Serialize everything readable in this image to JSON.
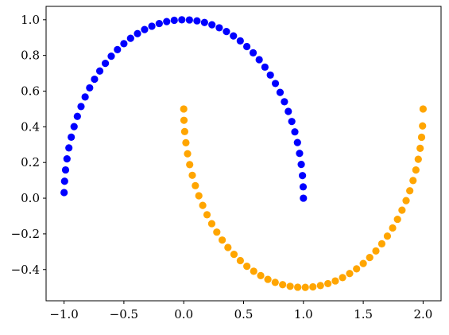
{
  "chart_data": {
    "type": "scatter",
    "title": "",
    "xlabel": "",
    "ylabel": "",
    "xlim": [
      -1.15,
      2.15
    ],
    "ylim": [
      -0.575,
      1.075
    ],
    "grid": false,
    "legend": "none",
    "x_ticks": [
      -1.0,
      -0.5,
      0.0,
      0.5,
      1.0,
      1.5,
      2.0
    ],
    "x_tick_labels": [
      "−1.0",
      "−0.5",
      "0.0",
      "0.5",
      "1.0",
      "1.5",
      "2.0"
    ],
    "y_ticks": [
      -0.4,
      -0.2,
      0.0,
      0.2,
      0.4,
      0.6,
      0.8,
      1.0
    ],
    "y_tick_labels": [
      "−0.4",
      "−0.2",
      "0.0",
      "0.2",
      "0.4",
      "0.6",
      "0.8",
      "1.0"
    ],
    "series": [
      {
        "color": "#0000ff",
        "x": [
          1.0,
          0.998,
          0.992,
          0.9819,
          0.9679,
          0.9501,
          0.9284,
          0.9029,
          0.8738,
          0.8413,
          0.8053,
          0.766,
          0.7237,
          0.6785,
          0.6306,
          0.5801,
          0.5272,
          0.4723,
          0.4154,
          0.3569,
          0.2969,
          0.2358,
          0.1736,
          0.1108,
          0.0476,
          -0.0159,
          -0.0792,
          -0.1423,
          -0.2048,
          -0.2665,
          -0.3271,
          -0.3863,
          -0.4441,
          -0.5,
          -0.5539,
          -0.6056,
          -0.6549,
          -0.7015,
          -0.7453,
          -0.7861,
          -0.8237,
          -0.858,
          -0.8888,
          -0.9161,
          -0.9397,
          -0.9595,
          -0.9754,
          -0.9874,
          -0.9955,
          -0.9995
        ],
        "y": [
          0.0,
          0.0635,
          0.1266,
          0.1893,
          0.2511,
          0.312,
          0.3717,
          0.4298,
          0.4863,
          0.5406,
          0.5929,
          0.6428,
          0.6901,
          0.7346,
          0.7761,
          0.8146,
          0.8497,
          0.8815,
          0.9096,
          0.9341,
          0.9549,
          0.9718,
          0.9848,
          0.9938,
          0.9989,
          0.9999,
          0.9969,
          0.9898,
          0.9788,
          0.9638,
          0.945,
          0.9224,
          0.896,
          0.866,
          0.8326,
          0.7958,
          0.7557,
          0.7127,
          0.6668,
          0.6182,
          0.5671,
          0.5137,
          0.4584,
          0.4012,
          0.342,
          0.2817,
          0.2205,
          0.1583,
          0.0951,
          0.0317
        ]
      },
      {
        "color": "#ffa500",
        "x": [
          0.0,
          0.002,
          0.008,
          0.0181,
          0.0321,
          0.0499,
          0.0716,
          0.0971,
          0.1262,
          0.1587,
          0.1947,
          0.234,
          0.2763,
          0.3215,
          0.3694,
          0.4199,
          0.4728,
          0.5277,
          0.5846,
          0.6431,
          0.7031,
          0.7642,
          0.8264,
          0.8892,
          0.9524,
          1.0159,
          1.0792,
          1.1423,
          1.2048,
          1.2665,
          1.3271,
          1.3863,
          1.4441,
          1.5,
          1.5539,
          1.6056,
          1.6549,
          1.7015,
          1.7453,
          1.7861,
          1.8237,
          1.858,
          1.8888,
          1.9161,
          1.9397,
          1.9595,
          1.9754,
          1.9874,
          1.9955,
          2.0
        ],
        "y": [
          0.5,
          0.4365,
          0.3734,
          0.3107,
          0.2489,
          0.188,
          0.1283,
          0.0702,
          0.0137,
          -0.0406,
          -0.0929,
          -0.1428,
          -0.1901,
          -0.2346,
          -0.2761,
          -0.3146,
          -0.3497,
          -0.3815,
          -0.4096,
          -0.4341,
          -0.4549,
          -0.4718,
          -0.4848,
          -0.4938,
          -0.4989,
          -0.4999,
          -0.4969,
          -0.4898,
          -0.4788,
          -0.4638,
          -0.445,
          -0.4224,
          -0.396,
          -0.366,
          -0.3326,
          -0.2958,
          -0.2557,
          -0.2127,
          -0.1668,
          -0.1182,
          -0.0671,
          -0.0137,
          0.0416,
          0.0988,
          0.158,
          0.2183,
          0.2795,
          0.3417,
          0.4049,
          0.5
        ]
      }
    ]
  }
}
